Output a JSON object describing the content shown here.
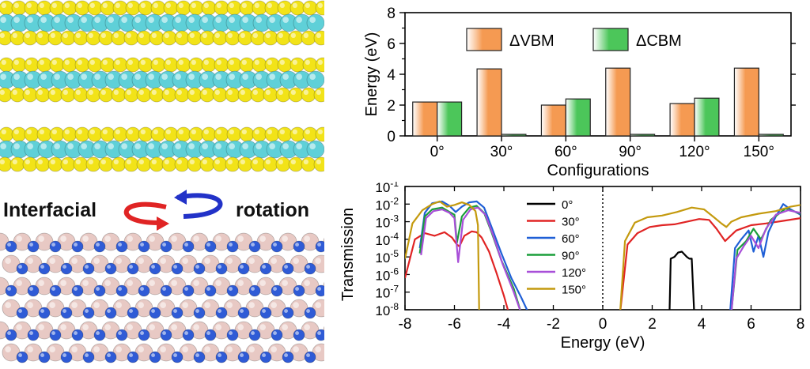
{
  "left": {
    "caption_left": "Interfacial",
    "caption_right": "rotation",
    "colors": {
      "s_atom": "#f2e318",
      "mo_atom": "#5fd0d8",
      "b_atom": "#e8c9c4",
      "n_atom": "#2f5bd6",
      "arrow_red": "#e02424",
      "arrow_blue": "#2232c8"
    }
  },
  "chart_data": [
    {
      "type": "bar",
      "categories": [
        "0°",
        "30°",
        "60°",
        "90°",
        "120°",
        "150°"
      ],
      "series": [
        {
          "name": "ΔVBM",
          "values": [
            2.2,
            4.35,
            2.0,
            4.4,
            2.1,
            4.4
          ],
          "color": "#f59a52"
        },
        {
          "name": "ΔCBM",
          "values": [
            2.2,
            0.1,
            2.4,
            0.1,
            2.45,
            0.1
          ],
          "color": "#4cc65a"
        }
      ],
      "xlabel": "Configurations",
      "ylabel": "Energy (eV)",
      "ylim": [
        0,
        8
      ],
      "yticks": [
        "0",
        "2",
        "4",
        "6",
        "8"
      ],
      "legend": "top"
    },
    {
      "type": "line",
      "xlabel": "Energy (eV)",
      "ylabel": "Transmission",
      "xlim": [
        -8,
        8
      ],
      "xticks": [
        "-8",
        "-6",
        "-4",
        "-2",
        "0",
        "2",
        "4",
        "6",
        "8"
      ],
      "yscale": "log",
      "ylim_exp": [
        -8,
        -1
      ],
      "ytick_exps": [
        -1,
        -2,
        -3,
        -4,
        -5,
        -6,
        -7,
        -8
      ],
      "legend": "center",
      "fermi_line_x": 0,
      "series": [
        {
          "name": "0°",
          "color": "#000000",
          "points": [
            [
              2.7,
              -8.2
            ],
            [
              2.75,
              -5.1
            ],
            [
              2.9,
              -5.0
            ],
            [
              3.05,
              -4.75
            ],
            [
              3.2,
              -4.7
            ],
            [
              3.4,
              -5.0
            ],
            [
              3.5,
              -5.1
            ],
            [
              3.6,
              -5.1
            ],
            [
              3.7,
              -8.2
            ]
          ]
        },
        {
          "name": "30°",
          "color": "#e02424",
          "points": [
            [
              -8,
              -6.2
            ],
            [
              -7.6,
              -4.0
            ],
            [
              -7.2,
              -3.65
            ],
            [
              -6.8,
              -3.8
            ],
            [
              -6.4,
              -3.6
            ],
            [
              -6.1,
              -3.9
            ],
            [
              -5.9,
              -4.3
            ],
            [
              -5.8,
              -4.4
            ],
            [
              -5.6,
              -3.8
            ],
            [
              -5.3,
              -3.55
            ],
            [
              -5.1,
              -3.6
            ],
            [
              -4.9,
              -3.9
            ],
            [
              -4.6,
              -4.7
            ],
            [
              -4.3,
              -5.9
            ],
            [
              -4.0,
              -7.2
            ],
            [
              -3.8,
              -8.2
            ],
            [
              0.7,
              -8.2
            ],
            [
              1.0,
              -4.3
            ],
            [
              1.4,
              -3.65
            ],
            [
              1.9,
              -3.3
            ],
            [
              2.4,
              -3.2
            ],
            [
              2.9,
              -3.15
            ],
            [
              3.4,
              -3.0
            ],
            [
              3.9,
              -2.85
            ],
            [
              4.3,
              -2.9
            ],
            [
              4.6,
              -3.4
            ],
            [
              4.8,
              -3.8
            ],
            [
              4.95,
              -4.1
            ],
            [
              5.1,
              -3.9
            ],
            [
              5.4,
              -3.5
            ],
            [
              6.0,
              -3.2
            ],
            [
              6.6,
              -3.1
            ],
            [
              7.3,
              -2.95
            ],
            [
              8.0,
              -2.8
            ]
          ]
        },
        {
          "name": "60°",
          "color": "#1f5fd6",
          "points": [
            [
              -7.4,
              -4.5
            ],
            [
              -7.2,
              -2.5
            ],
            [
              -6.9,
              -1.95
            ],
            [
              -6.5,
              -1.85
            ],
            [
              -6.2,
              -2.1
            ],
            [
              -5.95,
              -2.45
            ],
            [
              -5.7,
              -2.15
            ],
            [
              -5.4,
              -1.9
            ],
            [
              -5.1,
              -1.85
            ],
            [
              -4.8,
              -2.2
            ],
            [
              -4.5,
              -3.3
            ],
            [
              -4.1,
              -4.8
            ],
            [
              -3.7,
              -6.2
            ],
            [
              -3.3,
              -7.3
            ],
            [
              -3.0,
              -8.2
            ],
            [
              5.15,
              -8.2
            ],
            [
              5.35,
              -4.5
            ],
            [
              5.6,
              -4.0
            ],
            [
              5.9,
              -3.5
            ],
            [
              6.1,
              -4.7
            ],
            [
              6.3,
              -3.8
            ],
            [
              6.5,
              -5.0
            ],
            [
              6.7,
              -3.6
            ],
            [
              7.0,
              -2.7
            ],
            [
              7.3,
              -2.0
            ],
            [
              7.6,
              -2.3
            ],
            [
              8.0,
              -2.6
            ]
          ]
        },
        {
          "name": "90°",
          "color": "#1a9e3a",
          "points": [
            [
              -7.4,
              -4.8
            ],
            [
              -7.2,
              -2.7
            ],
            [
              -6.9,
              -2.3
            ],
            [
              -6.5,
              -2.2
            ],
            [
              -6.2,
              -2.45
            ],
            [
              -6.0,
              -2.6
            ],
            [
              -5.9,
              -4.2
            ],
            [
              -5.7,
              -2.7
            ],
            [
              -5.4,
              -2.2
            ],
            [
              -5.1,
              -2.1
            ],
            [
              -4.8,
              -2.5
            ],
            [
              -4.5,
              -3.6
            ],
            [
              -4.1,
              -5.2
            ],
            [
              -3.6,
              -6.8
            ],
            [
              -3.3,
              -8.2
            ],
            [
              5.2,
              -8.2
            ],
            [
              5.45,
              -4.6
            ],
            [
              5.8,
              -4.1
            ],
            [
              6.1,
              -3.4
            ],
            [
              6.4,
              -4.0
            ],
            [
              6.8,
              -2.9
            ],
            [
              7.4,
              -2.25
            ],
            [
              8.0,
              -2.55
            ]
          ]
        },
        {
          "name": "120°",
          "color": "#a84fd8",
          "points": [
            [
              -7.35,
              -4.9
            ],
            [
              -7.15,
              -2.8
            ],
            [
              -6.85,
              -2.4
            ],
            [
              -6.5,
              -2.3
            ],
            [
              -6.2,
              -2.5
            ],
            [
              -6.0,
              -2.8
            ],
            [
              -5.85,
              -5.3
            ],
            [
              -5.65,
              -2.9
            ],
            [
              -5.35,
              -2.3
            ],
            [
              -5.05,
              -2.2
            ],
            [
              -4.75,
              -2.6
            ],
            [
              -4.45,
              -3.7
            ],
            [
              -4.05,
              -5.4
            ],
            [
              -3.6,
              -7.0
            ],
            [
              -3.3,
              -8.2
            ],
            [
              5.2,
              -8.2
            ],
            [
              5.4,
              -5.1
            ],
            [
              5.7,
              -4.4
            ],
            [
              6.0,
              -3.8
            ],
            [
              6.3,
              -4.5
            ],
            [
              6.6,
              -3.4
            ],
            [
              7.0,
              -2.6
            ],
            [
              7.5,
              -2.35
            ],
            [
              8.0,
              -2.5
            ]
          ]
        },
        {
          "name": "150°",
          "color": "#c49a0e",
          "points": [
            [
              -8,
              -5.1
            ],
            [
              -7.7,
              -3.1
            ],
            [
              -7.3,
              -2.35
            ],
            [
              -6.9,
              -2.0
            ],
            [
              -6.6,
              -1.85
            ],
            [
              -6.3,
              -2.15
            ],
            [
              -6.0,
              -2.05
            ],
            [
              -5.7,
              -1.9
            ],
            [
              -5.4,
              -2.05
            ],
            [
              -5.15,
              -2.4
            ],
            [
              -5.05,
              -3.2
            ],
            [
              -5.0,
              -8.2
            ],
            [
              0.7,
              -8.2
            ],
            [
              0.9,
              -4.1
            ],
            [
              1.3,
              -3.05
            ],
            [
              1.8,
              -2.75
            ],
            [
              2.4,
              -2.65
            ],
            [
              3.0,
              -2.45
            ],
            [
              3.6,
              -2.2
            ],
            [
              4.1,
              -2.3
            ],
            [
              4.5,
              -2.75
            ],
            [
              4.8,
              -3.1
            ],
            [
              5.0,
              -3.3
            ],
            [
              5.2,
              -3.0
            ],
            [
              5.6,
              -2.75
            ],
            [
              6.3,
              -2.55
            ],
            [
              7.0,
              -2.4
            ],
            [
              7.6,
              -2.15
            ],
            [
              8.0,
              -2.05
            ]
          ]
        }
      ]
    }
  ]
}
